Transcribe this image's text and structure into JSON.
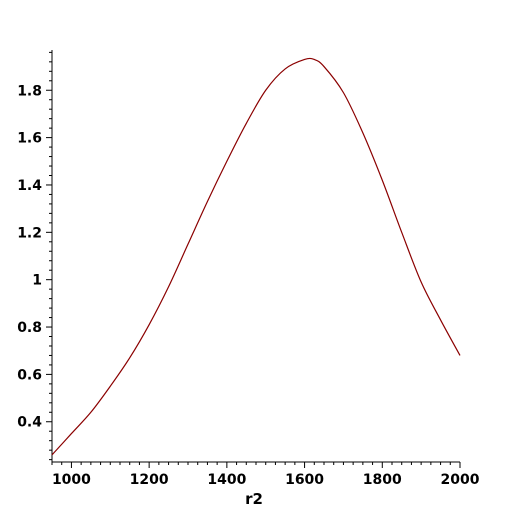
{
  "chart_data": {
    "type": "line",
    "title": "",
    "xlabel": "r2",
    "ylabel": "",
    "xlim": [
      950,
      2000
    ],
    "ylim": [
      0.23,
      1.97
    ],
    "x_ticks": [
      {
        "value": 1000,
        "label": "1000"
      },
      {
        "value": 1200,
        "label": "1200"
      },
      {
        "value": 1400,
        "label": "1400"
      },
      {
        "value": 1600,
        "label": "1600"
      },
      {
        "value": 1800,
        "label": "1800"
      },
      {
        "value": 2000,
        "label": "2000"
      }
    ],
    "y_ticks": [
      {
        "value": 0.4,
        "label": "0.4"
      },
      {
        "value": 0.6,
        "label": "0.6"
      },
      {
        "value": 0.8,
        "label": "0.8"
      },
      {
        "value": 1.0,
        "label": "1"
      },
      {
        "value": 1.2,
        "label": "1.2"
      },
      {
        "value": 1.4,
        "label": "1.4"
      },
      {
        "value": 1.6,
        "label": "1.6"
      },
      {
        "value": 1.8,
        "label": "1.8"
      }
    ],
    "grid": false,
    "series": [
      {
        "name": "",
        "color": "#8b0000",
        "x": [
          950,
          1000,
          1050,
          1100,
          1150,
          1200,
          1250,
          1300,
          1350,
          1400,
          1450,
          1500,
          1550,
          1600,
          1625,
          1650,
          1700,
          1750,
          1800,
          1850,
          1900,
          1950,
          2000
        ],
        "y": [
          0.26,
          0.35,
          0.44,
          0.55,
          0.67,
          0.81,
          0.97,
          1.15,
          1.33,
          1.5,
          1.66,
          1.8,
          1.89,
          1.93,
          1.93,
          1.9,
          1.79,
          1.62,
          1.42,
          1.2,
          0.99,
          0.83,
          0.68
        ]
      }
    ]
  }
}
